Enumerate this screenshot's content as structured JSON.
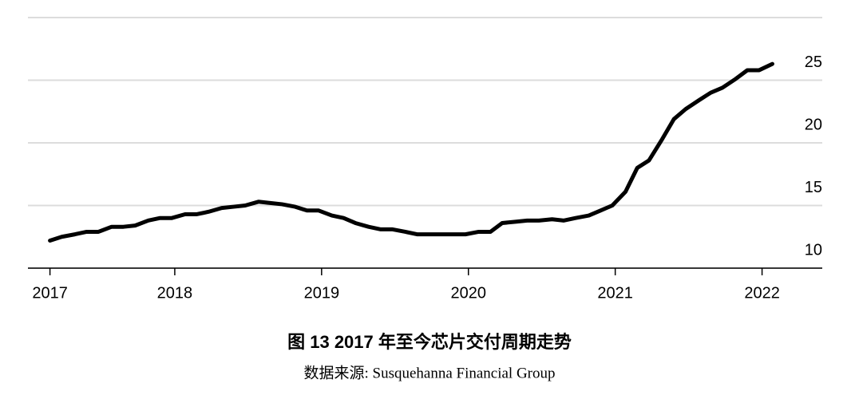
{
  "chart_data": {
    "type": "line",
    "title": "图 13 2017 年至今芯片交付周期走势",
    "source": "数据来源: Susquehanna Financial Group",
    "x": [
      2017.15,
      2017.23,
      2017.32,
      2017.4,
      2017.48,
      2017.57,
      2017.65,
      2017.73,
      2017.82,
      2017.9,
      2017.98,
      2018.07,
      2018.15,
      2018.23,
      2018.32,
      2018.4,
      2018.48,
      2018.57,
      2018.65,
      2018.73,
      2018.82,
      2018.9,
      2018.98,
      2019.07,
      2019.15,
      2019.23,
      2019.32,
      2019.4,
      2019.48,
      2019.57,
      2019.65,
      2019.73,
      2019.82,
      2019.9,
      2019.98,
      2020.07,
      2020.15,
      2020.23,
      2020.32,
      2020.4,
      2020.48,
      2020.57,
      2020.65,
      2020.73,
      2020.82,
      2020.9,
      2020.98,
      2021.07,
      2021.15,
      2021.23,
      2021.32,
      2021.4,
      2021.48,
      2021.57,
      2021.65,
      2021.73,
      2021.82,
      2021.9,
      2021.98,
      2022.07
    ],
    "series": [
      {
        "name": "交付周期",
        "color": "#000000",
        "values": [
          12.2,
          12.5,
          12.7,
          12.9,
          12.9,
          13.3,
          13.3,
          13.4,
          13.8,
          14.0,
          14.0,
          14.3,
          14.3,
          14.5,
          14.8,
          14.9,
          15.0,
          15.3,
          15.2,
          15.1,
          14.9,
          14.6,
          14.6,
          14.2,
          14.0,
          13.6,
          13.3,
          13.1,
          13.1,
          12.9,
          12.7,
          12.7,
          12.7,
          12.7,
          12.7,
          12.9,
          12.9,
          13.6,
          13.7,
          13.8,
          13.8,
          13.9,
          13.8,
          14.0,
          14.2,
          14.6,
          15.0,
          16.1,
          18.0,
          18.6,
          20.3,
          21.9,
          22.7,
          23.4,
          24.0,
          24.4,
          25.1,
          25.8,
          25.8,
          26.3
        ]
      }
    ],
    "xlim": [
      2017.0,
      2022.41
    ],
    "xticks": [
      {
        "value": 2017.15,
        "label": "2017"
      },
      2018,
      2019,
      2020,
      2021,
      2022
    ],
    "ylim": [
      10,
      30
    ],
    "yticks": [
      10,
      15,
      20,
      25
    ],
    "grid": true
  }
}
